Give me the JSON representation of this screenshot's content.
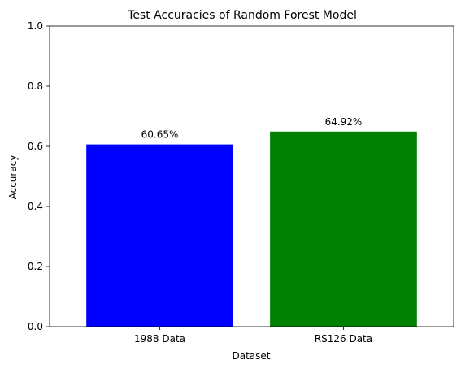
{
  "chart_data": {
    "type": "bar",
    "title": "Test Accuracies of Random Forest Model",
    "xlabel": "Dataset",
    "ylabel": "Accuracy",
    "categories": [
      "1988 Data",
      "RS126 Data"
    ],
    "values": [
      0.6065,
      0.6492
    ],
    "data_labels": [
      "60.65%",
      "64.92%"
    ],
    "bar_colors": [
      "#0000ff",
      "#008000"
    ],
    "ylim": [
      0,
      1.0
    ],
    "yticks": [
      "0.0",
      "0.2",
      "0.4",
      "0.6",
      "0.8",
      "1.0"
    ],
    "grid": false,
    "legend": "none"
  }
}
